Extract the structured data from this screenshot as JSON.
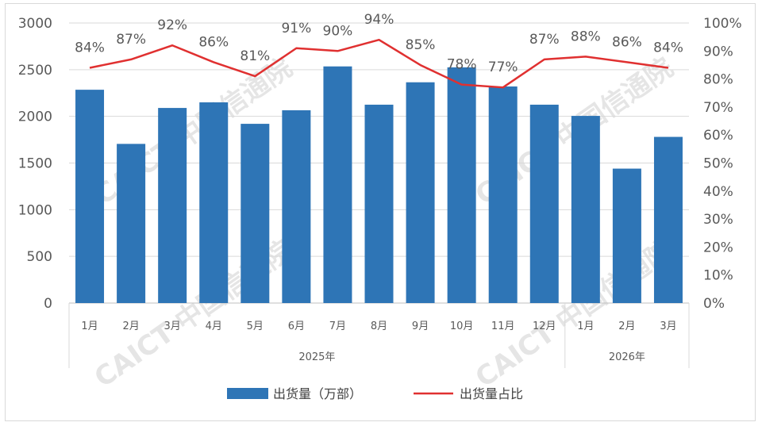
{
  "chart_data": {
    "type": "bar+line",
    "categories": [
      "1月",
      "2月",
      "3月",
      "4月",
      "5月",
      "6月",
      "7月",
      "8月",
      "9月",
      "10月",
      "11月",
      "12月",
      "1月",
      "2月",
      "3月"
    ],
    "year_groups": [
      {
        "label": "2025年",
        "start": 0,
        "end": 11
      },
      {
        "label": "2026年",
        "start": 12,
        "end": 14
      }
    ],
    "series": [
      {
        "name": "出货量（万部）",
        "type": "bar",
        "axis": "left",
        "color": "#2e75b6",
        "values": [
          2285,
          1705,
          2090,
          2150,
          1920,
          2065,
          2535,
          2125,
          2365,
          2525,
          2320,
          2125,
          2005,
          1440,
          1780
        ]
      },
      {
        "name": "出货量占比",
        "type": "line",
        "axis": "right",
        "color": "#e03030",
        "values": [
          84,
          87,
          92,
          86,
          81,
          91,
          90,
          94,
          85,
          78,
          77,
          87,
          88,
          86,
          84
        ],
        "labels": [
          "84%",
          "87%",
          "92%",
          "86%",
          "81%",
          "91%",
          "90%",
          "94%",
          "85%",
          "78%",
          "77%",
          "87%",
          "88%",
          "86%",
          "84%"
        ]
      }
    ],
    "y_left": {
      "min": 0,
      "max": 3000,
      "ticks": [
        "0",
        "500",
        "1000",
        "1500",
        "2000",
        "2500",
        "3000"
      ]
    },
    "y_right": {
      "min": 0,
      "max": 100,
      "ticks": [
        "0%",
        "10%",
        "20%",
        "30%",
        "40%",
        "50%",
        "60%",
        "70%",
        "80%",
        "90%",
        "100%"
      ]
    },
    "grid": true,
    "legend_position": "bottom"
  },
  "watermark": "CAICT 中国信通院"
}
